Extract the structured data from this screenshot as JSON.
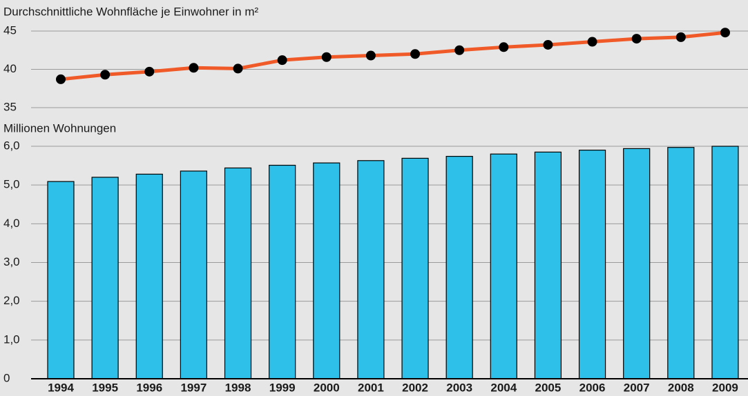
{
  "chart_data": [
    {
      "type": "line",
      "title": "Durchschnittliche Wohnfläche je Einwohner in m²",
      "series": [
        {
          "color": "#f05a28",
          "marker_color": "#000000",
          "values": [
            38.7,
            39.3,
            39.7,
            40.2,
            40.1,
            41.2,
            41.6,
            41.8,
            42.0,
            42.5,
            42.9,
            43.2,
            43.6,
            44.0,
            44.2,
            44.8
          ]
        }
      ],
      "ylim": [
        35,
        45
      ],
      "yticks": [
        35,
        40,
        45
      ],
      "grid": true
    },
    {
      "type": "bar",
      "title": "Millionen Wohnungen",
      "categories": [
        "1994",
        "1995",
        "1996",
        "1997",
        "1998",
        "1999",
        "2000",
        "2001",
        "2002",
        "2003",
        "2004",
        "2005",
        "2006",
        "2007",
        "2008",
        "2009"
      ],
      "values": [
        5.09,
        5.2,
        5.28,
        5.36,
        5.44,
        5.51,
        5.57,
        5.63,
        5.69,
        5.74,
        5.8,
        5.85,
        5.9,
        5.94,
        5.97,
        6.0
      ],
      "color": "#2ec0e8",
      "ylim": [
        0,
        6
      ],
      "yticks": [
        0,
        {
          "value": 1,
          "label": "1,0"
        },
        {
          "value": 2,
          "label": "2,0"
        },
        {
          "value": 3,
          "label": "3,0"
        },
        {
          "value": 4,
          "label": "4,0"
        },
        {
          "value": 5,
          "label": "5,0"
        },
        {
          "value": 6,
          "label": "6,0"
        }
      ],
      "grid": true
    }
  ]
}
